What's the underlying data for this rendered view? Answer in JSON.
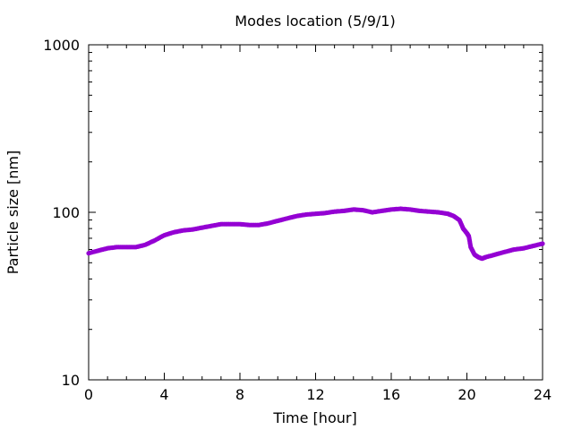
{
  "chart_data": {
    "type": "scatter",
    "title": "Modes location (5/9/1)",
    "xlabel": "Time [hour]",
    "ylabel": "Particle size [nm]",
    "xlim": [
      0,
      24
    ],
    "ylim": [
      10,
      1000
    ],
    "yscale": "log",
    "xticks": [
      0,
      4,
      8,
      12,
      16,
      20,
      24
    ],
    "xtick_labels": [
      "0",
      "4",
      "8",
      "12",
      "16",
      "20",
      "24"
    ],
    "yticks": [
      10,
      100,
      1000
    ],
    "ytick_labels": [
      "10",
      "100",
      "1000"
    ],
    "marker_color": "#9400d3",
    "series": [
      {
        "x": [
          0.0,
          0.5,
          1.0,
          1.5,
          2.0,
          2.5,
          3.0,
          3.5,
          4.0,
          4.5,
          5.0,
          5.5,
          6.0,
          6.5,
          7.0,
          7.5,
          8.0,
          8.5,
          9.0,
          9.5,
          10.0,
          10.5,
          11.0,
          11.5,
          12.0,
          12.5,
          13.0,
          13.5,
          14.0,
          14.5,
          15.0,
          15.5,
          16.0,
          16.5,
          17.0,
          17.5,
          18.0,
          18.5,
          19.0,
          19.3,
          19.6,
          19.8,
          20.0,
          20.1,
          20.2,
          20.4,
          20.6,
          20.8,
          21.0,
          21.5,
          22.0,
          22.5,
          23.0,
          23.5,
          24.0
        ],
        "y": [
          57,
          59,
          61,
          62,
          62,
          62,
          64,
          68,
          73,
          76,
          78,
          79,
          81,
          83,
          85,
          85,
          85,
          84,
          84,
          86,
          89,
          92,
          95,
          97,
          98,
          99,
          101,
          102,
          104,
          103,
          100,
          102,
          104,
          105,
          104,
          102,
          101,
          100,
          98,
          95,
          90,
          80,
          75,
          72,
          62,
          56,
          54,
          53,
          54,
          56,
          58,
          60,
          61,
          63,
          65
        ]
      }
    ]
  }
}
